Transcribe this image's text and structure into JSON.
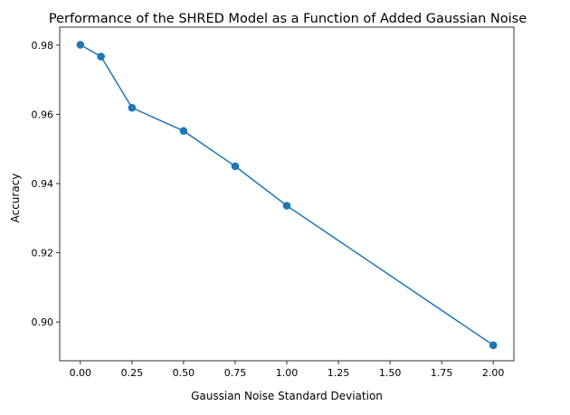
{
  "chart_data": {
    "type": "line",
    "title": "Performance of the SHRED Model as a Function of Added Gaussian Noise",
    "xlabel": "Gaussian Noise Standard Deviation",
    "ylabel": "Accuracy",
    "xlim": [
      -0.1,
      2.1
    ],
    "ylim": [
      0.8888,
      0.9852
    ],
    "x_ticks": [
      0.0,
      0.25,
      0.5,
      0.75,
      1.0,
      1.25,
      1.5,
      1.75,
      2.0
    ],
    "x_tick_labels": [
      "0.00",
      "0.25",
      "0.50",
      "0.75",
      "1.00",
      "1.25",
      "1.50",
      "1.75",
      "2.00"
    ],
    "y_ticks": [
      0.9,
      0.92,
      0.94,
      0.96,
      0.98
    ],
    "y_tick_labels": [
      "0.90",
      "0.92",
      "0.94",
      "0.96",
      "0.98"
    ],
    "grid": false,
    "series": [
      {
        "x": [
          0.0,
          0.1,
          0.25,
          0.5,
          0.75,
          1.0,
          2.0
        ],
        "y": [
          0.9801,
          0.9767,
          0.9619,
          0.9552,
          0.945,
          0.9336,
          0.8933
        ],
        "color": "#1f77b4",
        "marker": "circle"
      }
    ]
  }
}
